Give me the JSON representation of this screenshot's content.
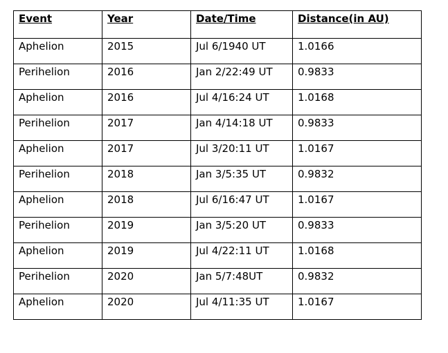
{
  "table": {
    "header": [
      "Event",
      "Year",
      "Date/Time",
      "Distance(in AU)"
    ],
    "rows": [
      [
        "Aphelion",
        "2015",
        "Jul 6/1940 UT",
        "1.0166"
      ],
      [
        "Perihelion",
        "2016",
        "Jan 2/22:49 UT",
        "0.9833"
      ],
      [
        "Aphelion",
        "2016",
        "Jul 4/16:24 UT",
        "1.0168"
      ],
      [
        "Perihelion",
        "2017",
        "Jan 4/14:18 UT",
        "0.9833"
      ],
      [
        "Aphelion",
        "2017",
        "Jul 3/20:11 UT",
        "1.0167"
      ],
      [
        "Perihelion",
        "2018",
        "Jan 3/5:35 UT",
        "0.9832"
      ],
      [
        "Aphelion",
        "2018",
        "Jul 6/16:47 UT",
        "1.0167"
      ],
      [
        "Perihelion",
        "2019",
        "Jan 3/5:20 UT",
        "0.9833"
      ],
      [
        "Aphelion",
        "2019",
        "Jul 4/22:11 UT",
        "1.0168"
      ],
      [
        "Perihelion",
        "2020",
        "Jan 5/7:48UT",
        "0.9832"
      ],
      [
        "Aphelion",
        "2020",
        "Jul 4/11:35 UT",
        "1.0167"
      ]
    ]
  }
}
